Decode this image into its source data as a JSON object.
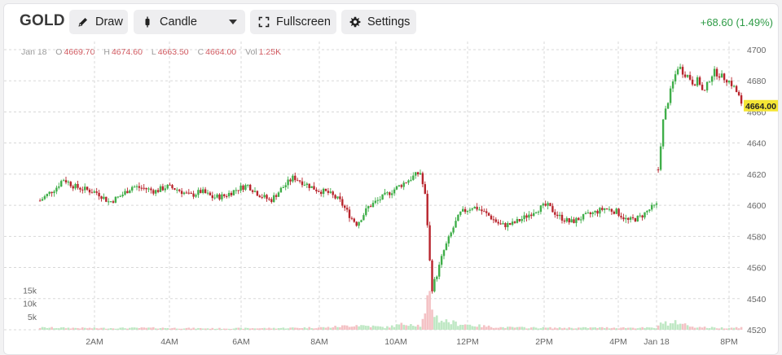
{
  "toolbar": {
    "symbol": "GOLD",
    "draw_label": "Draw",
    "chart_type_label": "Candle",
    "fullscreen_label": "Fullscreen",
    "settings_label": "Settings",
    "change_text": "+68.60 (1.49%)"
  },
  "ohlc": {
    "date": "Jan 18",
    "open_key": "O",
    "open": "4669.70",
    "high_key": "H",
    "high": "4674.60",
    "low_key": "L",
    "low": "4663.50",
    "close_key": "C",
    "close": "4664.00",
    "vol_key": "Vol",
    "vol": "1.25K"
  },
  "colors": {
    "up": "#3fae49",
    "down": "#b8242c",
    "vol_up": "#bfe8c4",
    "vol_down": "#f4c2c5",
    "grid": "#d8d8d8",
    "price_badge": "#f5e635",
    "change": "#2e9b46"
  },
  "icons": {
    "draw": "pencil-icon",
    "candle": "candle-icon",
    "fullscreen": "fullscreen-icon",
    "settings": "gear-icon",
    "dropdown": "chevron-down-icon"
  },
  "chart_data": {
    "type": "candlestick",
    "current_price_label": "4664.00",
    "y_axis": {
      "ticks": [
        4520,
        4540,
        4560,
        4580,
        4600,
        4620,
        4640,
        4660,
        4680,
        4700
      ],
      "range": [
        4520,
        4700
      ]
    },
    "volume_axis": {
      "tick_labels": [
        "5k",
        "10k",
        "15k"
      ],
      "ticks": [
        5000,
        10000,
        15000
      ]
    },
    "x_axis": {
      "tick_labels": [
        "2AM",
        "4AM",
        "6AM",
        "8AM",
        "10AM",
        "12PM",
        "2PM",
        "4PM",
        "Jan 18",
        "8PM"
      ]
    },
    "grid": true,
    "price_path": [
      [
        0,
        4603
      ],
      [
        3,
        4612
      ],
      [
        4,
        4617
      ],
      [
        6,
        4612
      ],
      [
        8,
        4610
      ],
      [
        10,
        4608
      ],
      [
        12,
        4602
      ],
      [
        14,
        4606
      ],
      [
        16,
        4612
      ],
      [
        18,
        4611
      ],
      [
        20,
        4609
      ],
      [
        22,
        4612
      ],
      [
        24,
        4610
      ],
      [
        26,
        4606
      ],
      [
        28,
        4609
      ],
      [
        30,
        4605
      ],
      [
        32,
        4606
      ],
      [
        34,
        4610
      ],
      [
        36,
        4613
      ],
      [
        38,
        4607
      ],
      [
        40,
        4603
      ],
      [
        42,
        4611
      ],
      [
        44,
        4618
      ],
      [
        46,
        4614
      ],
      [
        48,
        4610
      ],
      [
        50,
        4608
      ],
      [
        52,
        4603
      ],
      [
        54,
        4592
      ],
      [
        55,
        4588
      ],
      [
        57,
        4599
      ],
      [
        59,
        4604
      ],
      [
        61,
        4609
      ],
      [
        63,
        4614
      ],
      [
        65,
        4619
      ],
      [
        66,
        4621
      ],
      [
        67,
        4603
      ],
      [
        67.5,
        4571
      ],
      [
        68,
        4546
      ],
      [
        69,
        4557
      ],
      [
        70,
        4570
      ],
      [
        72,
        4588
      ],
      [
        73,
        4595
      ],
      [
        75,
        4599
      ],
      [
        76,
        4598
      ],
      [
        78,
        4593
      ],
      [
        80,
        4587
      ],
      [
        82,
        4588
      ],
      [
        84,
        4592
      ],
      [
        86,
        4597
      ],
      [
        88,
        4600
      ],
      [
        90,
        4593
      ],
      [
        92,
        4589
      ],
      [
        94,
        4592
      ],
      [
        96,
        4595
      ],
      [
        98,
        4598
      ],
      [
        100,
        4596
      ],
      [
        102,
        4590
      ],
      [
        104,
        4592
      ],
      [
        106,
        4598
      ],
      [
        107,
        4600
      ]
    ],
    "price_path_day2": [
      [
        0,
        4623
      ],
      [
        0.5,
        4640
      ],
      [
        1,
        4655
      ],
      [
        2,
        4668
      ],
      [
        3,
        4680
      ],
      [
        4,
        4690
      ],
      [
        5,
        4685
      ],
      [
        6,
        4683
      ],
      [
        7,
        4678
      ],
      [
        8,
        4681
      ],
      [
        9,
        4671
      ],
      [
        10,
        4680
      ],
      [
        11,
        4686
      ],
      [
        12,
        4684
      ],
      [
        13,
        4682
      ],
      [
        14,
        4680
      ],
      [
        15,
        4676
      ],
      [
        16,
        4670
      ],
      [
        16.5,
        4664
      ]
    ],
    "volume_profile": [
      [
        0,
        800
      ],
      [
        10,
        600
      ],
      [
        20,
        700
      ],
      [
        30,
        500
      ],
      [
        40,
        600
      ],
      [
        50,
        900
      ],
      [
        55,
        1800
      ],
      [
        60,
        900
      ],
      [
        64,
        2500
      ],
      [
        66,
        1500
      ],
      [
        67,
        6000
      ],
      [
        67.5,
        13500
      ],
      [
        68,
        9000
      ],
      [
        69,
        4000
      ],
      [
        72,
        2500
      ],
      [
        76,
        1500
      ],
      [
        80,
        900
      ],
      [
        90,
        700
      ],
      [
        100,
        800
      ],
      [
        107,
        700
      ]
    ],
    "volume_profile_day2": [
      [
        0,
        1200
      ],
      [
        1,
        3800
      ],
      [
        2,
        1800
      ],
      [
        4,
        3000
      ],
      [
        6,
        1500
      ],
      [
        8,
        1000
      ],
      [
        12,
        700
      ],
      [
        16,
        900
      ]
    ]
  }
}
